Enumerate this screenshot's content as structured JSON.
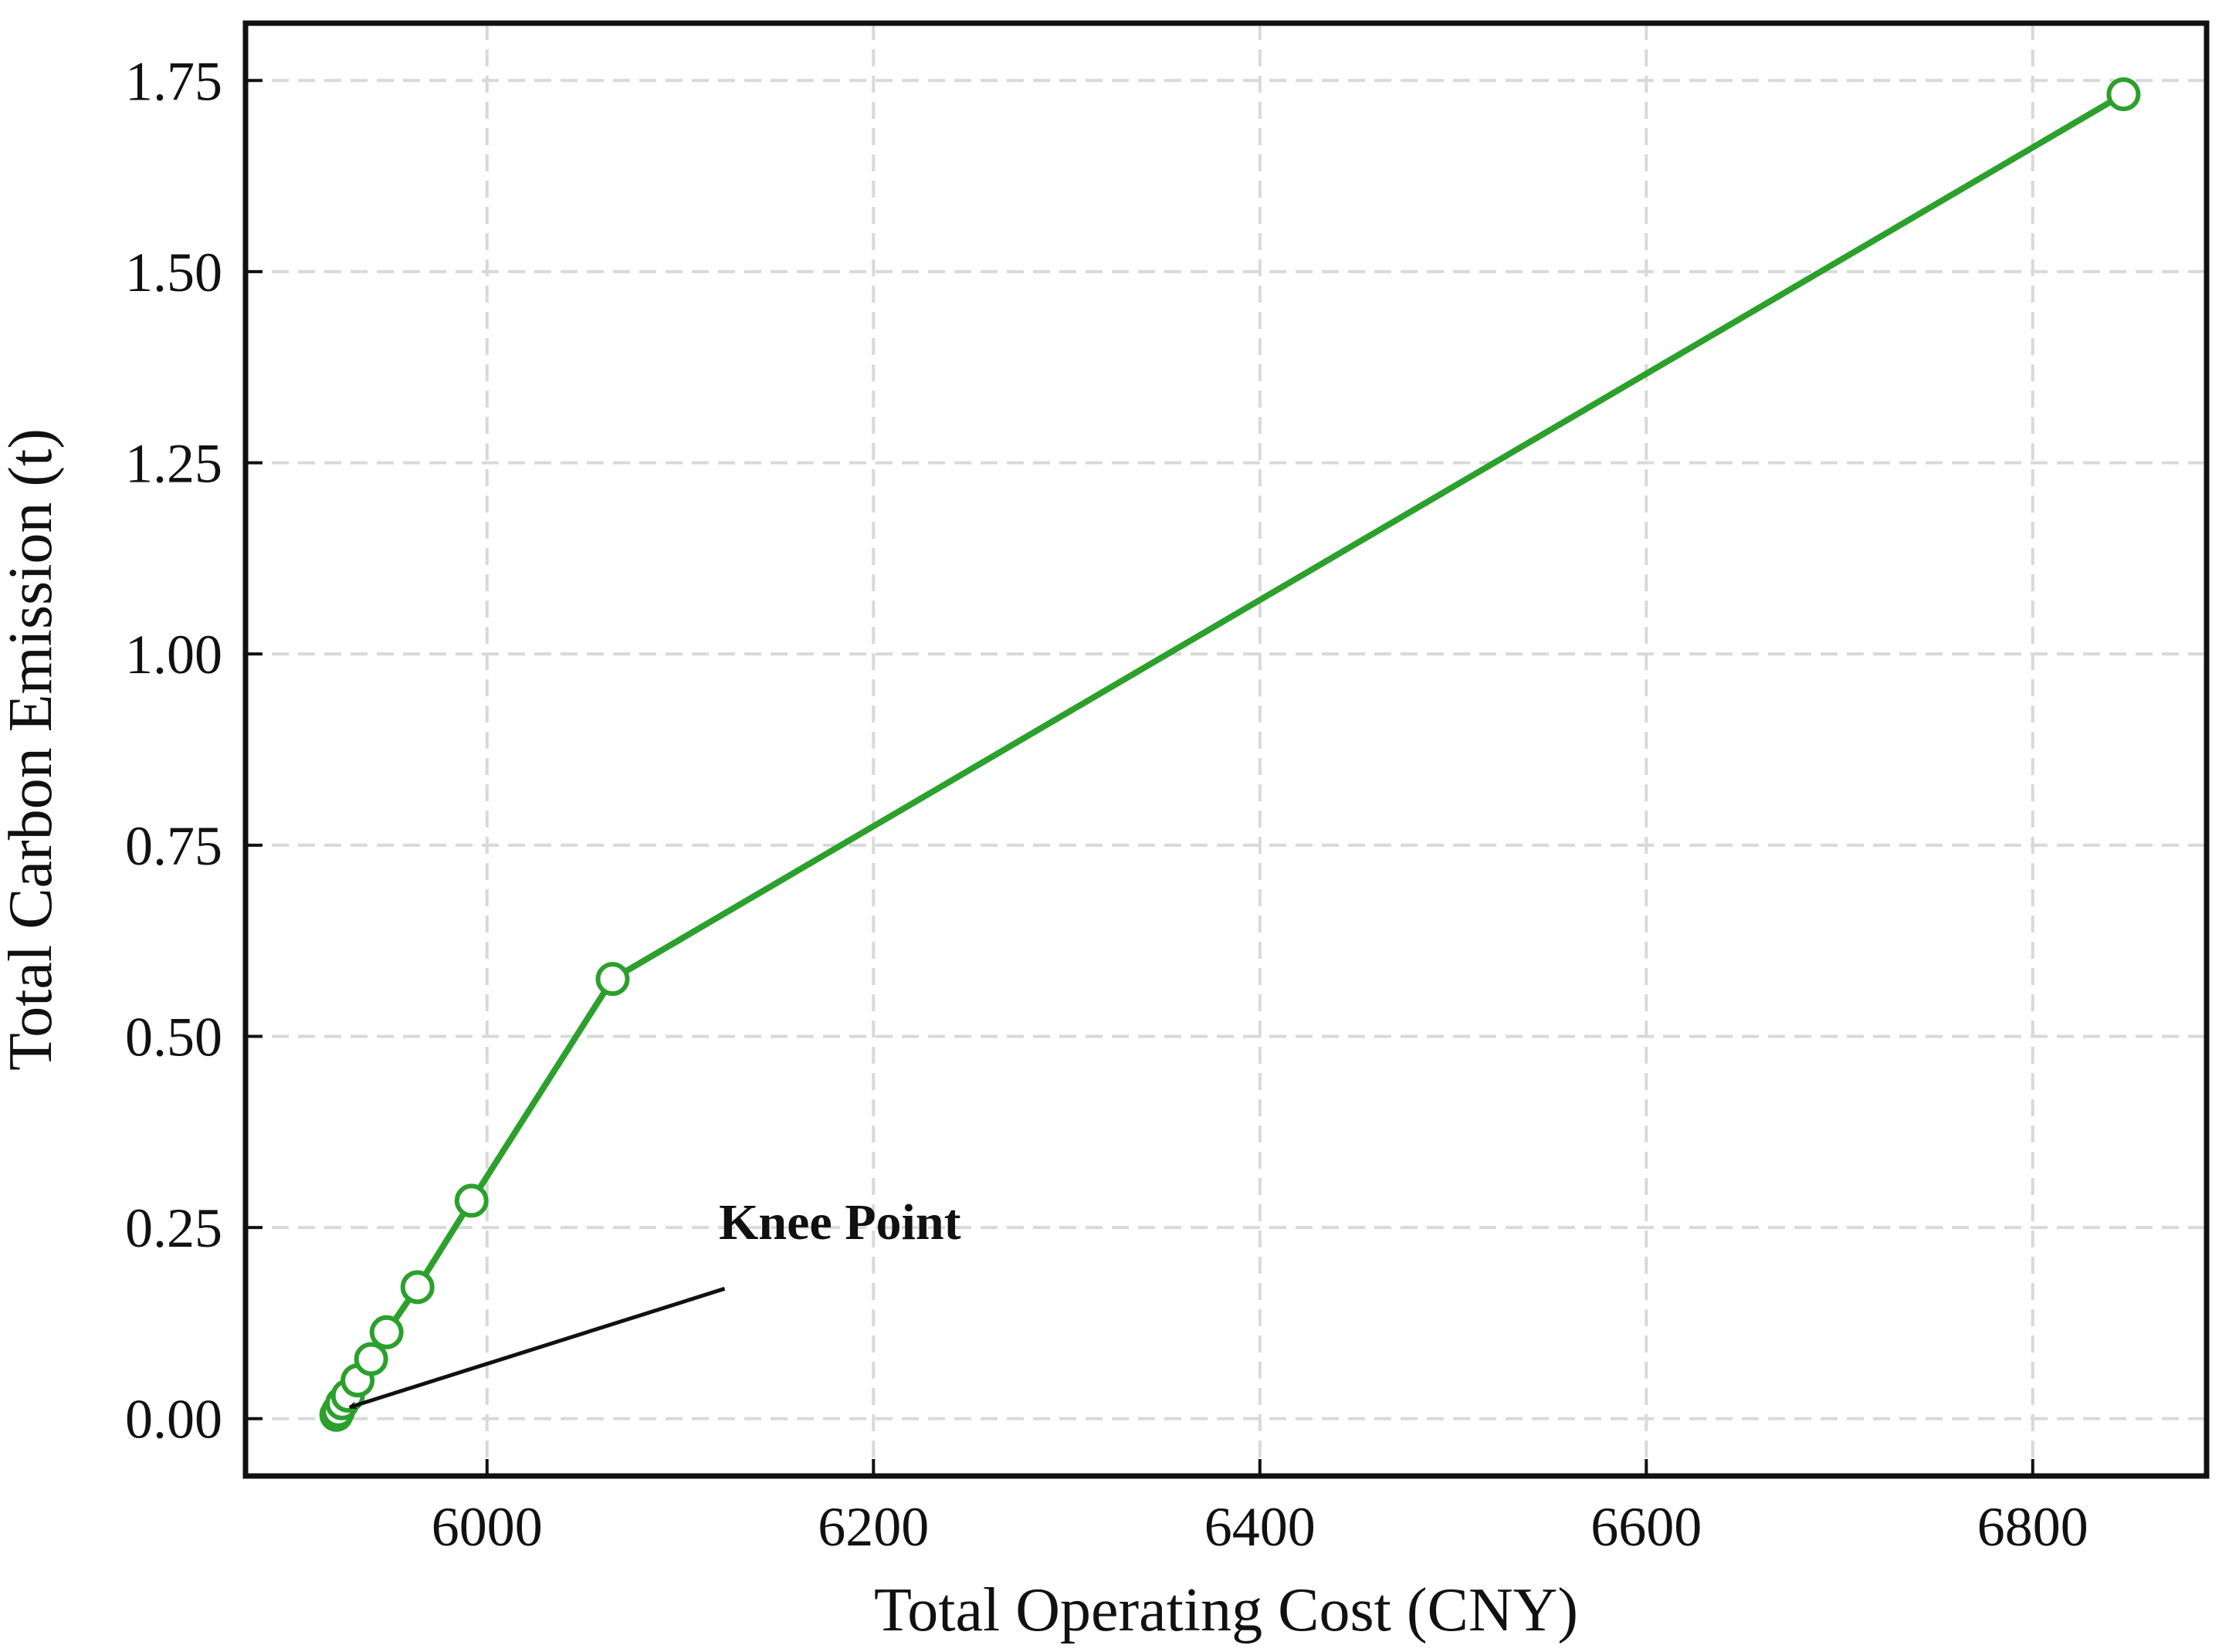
{
  "chart_data": {
    "type": "line",
    "title": "",
    "xlabel": "Total Operating Cost (CNY)",
    "ylabel": "Total Carbon Emission (t)",
    "xlim": [
      5875,
      6890
    ],
    "ylim": [
      -0.075,
      1.825
    ],
    "xticks": [
      6000,
      6200,
      6400,
      6600,
      6800
    ],
    "yticks": [
      0.0,
      0.25,
      0.5,
      0.75,
      1.0,
      1.25,
      1.5,
      1.75
    ],
    "xtick_labels": [
      "6000",
      "6200",
      "6400",
      "6600",
      "6800"
    ],
    "ytick_labels": [
      "0.00",
      "0.25",
      "0.50",
      "0.75",
      "1.00",
      "1.25",
      "1.50",
      "1.75"
    ],
    "grid": true,
    "series": [
      {
        "color": "#2ca02c",
        "marker": "open-circle",
        "x": [
          5922,
          5923,
          5925,
          5928,
          5933,
          5940,
          5948,
          5964,
          5992,
          6065,
          6847
        ],
        "y": [
          0.005,
          0.01,
          0.02,
          0.03,
          0.05,
          0.078,
          0.113,
          0.172,
          0.285,
          0.575,
          1.732
        ]
      }
    ],
    "annotations": [
      {
        "text": "Knee Point",
        "text_x": 6120,
        "text_y": 0.235,
        "arrow_from_x": 6123,
        "arrow_from_y": 0.17,
        "arrow_to_x": 5929,
        "arrow_to_y": 0.015
      }
    ]
  }
}
